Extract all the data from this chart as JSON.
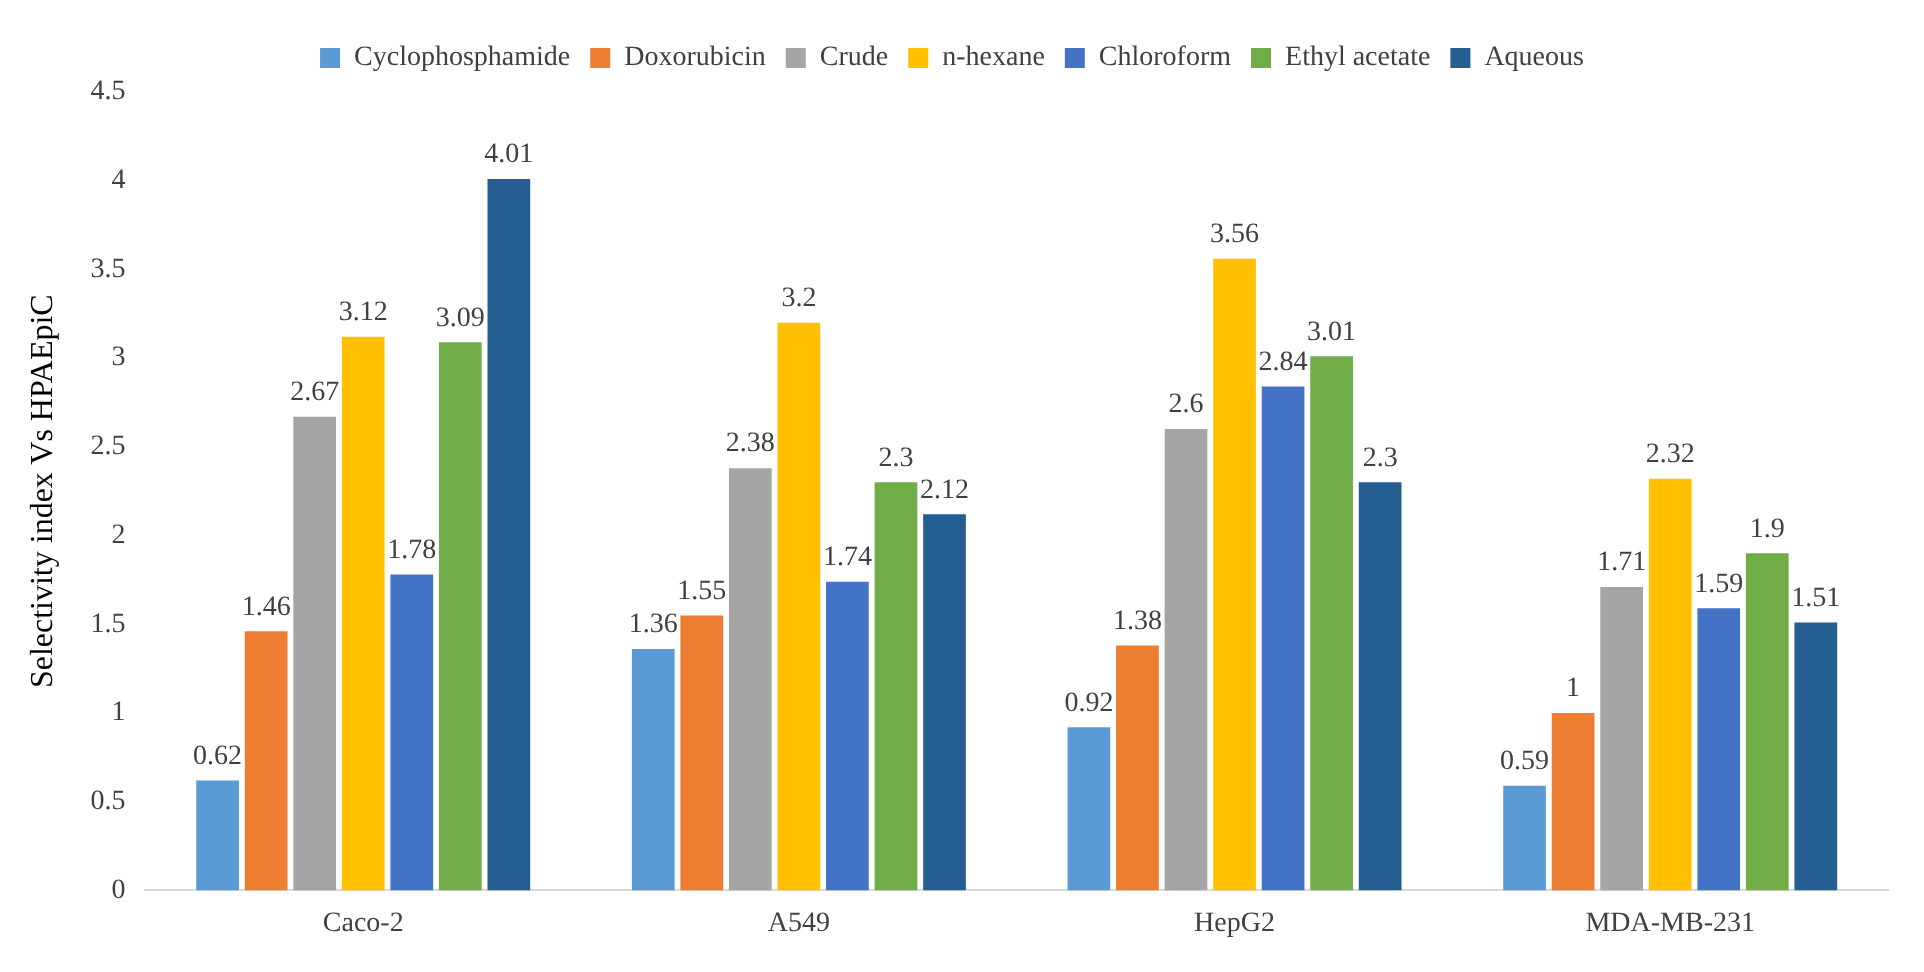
{
  "chart_data": {
    "type": "bar",
    "ylabel": "Selectivity index Vs HPAEpiC",
    "categories": [
      "Caco-2",
      "A549",
      "HepG2",
      "MDA-MB-231"
    ],
    "series": [
      {
        "name": "Cyclophosphamide",
        "color": "#5b9bd5",
        "values": [
          0.62,
          1.36,
          0.92,
          0.59
        ]
      },
      {
        "name": "Doxorubicin",
        "color": "#ed7d31",
        "values": [
          1.46,
          1.55,
          1.38,
          1
        ]
      },
      {
        "name": "Crude",
        "color": "#a5a5a5",
        "values": [
          2.67,
          2.38,
          2.6,
          1.71
        ]
      },
      {
        "name": "n-hexane",
        "color": "#ffc000",
        "values": [
          3.12,
          3.2,
          3.56,
          2.32
        ]
      },
      {
        "name": "Chloroform",
        "color": "#4472c4",
        "values": [
          1.78,
          1.74,
          2.84,
          1.59
        ]
      },
      {
        "name": "Ethyl acetate",
        "color": "#70ad47",
        "values": [
          3.09,
          2.3,
          3.01,
          1.9
        ]
      },
      {
        "name": "Aqueous",
        "color": "#255e91",
        "values": [
          4.01,
          2.12,
          2.3,
          1.51
        ]
      }
    ],
    "ylim": [
      0,
      4.5
    ],
    "yticks": [
      0,
      0.5,
      1,
      1.5,
      2,
      2.5,
      3,
      3.5,
      4,
      4.5
    ],
    "grid": false,
    "legend": "top",
    "data_labels": true
  }
}
